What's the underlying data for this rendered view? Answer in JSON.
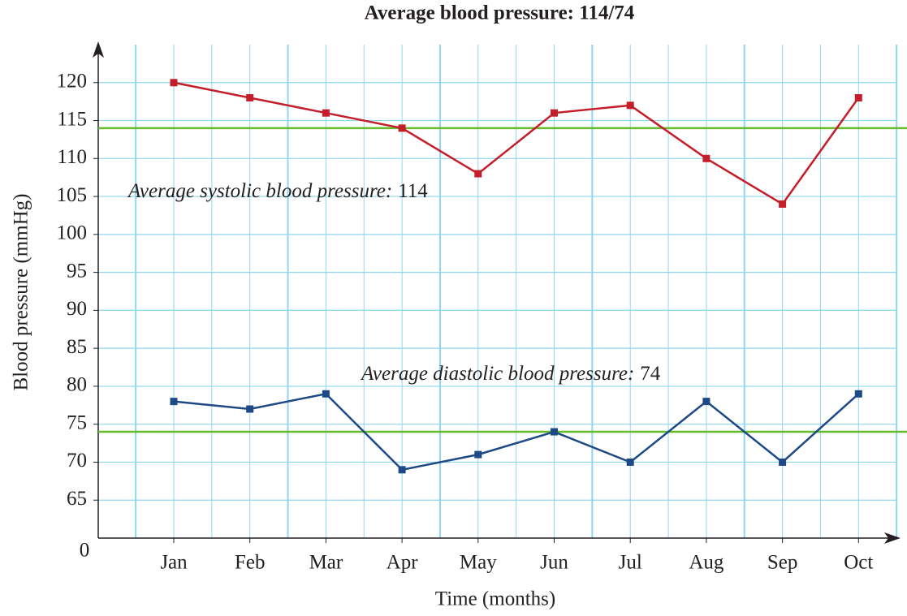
{
  "chart_data": {
    "type": "line",
    "title": "Average blood pressure: 114/74",
    "x_label": "Time (months)",
    "y_label": "Blood pressure (mmHg)",
    "origin_label": "0",
    "categories": [
      "Jan",
      "Feb",
      "Mar",
      "Apr",
      "May",
      "Jun",
      "Jul",
      "Aug",
      "Sep",
      "Oct"
    ],
    "series": [
      {
        "name": "Systolic",
        "color": "#c41e2a",
        "values": [
          120,
          118,
          116,
          114,
          108,
          116,
          117,
          110,
          104,
          118
        ]
      },
      {
        "name": "Diastolic",
        "color": "#1d4a86",
        "values": [
          78,
          77,
          79,
          69,
          71,
          74,
          70,
          78,
          70,
          79
        ]
      }
    ],
    "average_lines": [
      {
        "label": "Average systolic blood pressure:",
        "value": 114,
        "color": "#66bb2a"
      },
      {
        "label": "Average diastolic blood pressure:",
        "value": 74,
        "color": "#66bb2a"
      }
    ],
    "ylim": [
      60,
      125
    ],
    "yticks": [
      65,
      70,
      75,
      80,
      85,
      90,
      95,
      100,
      105,
      110,
      115,
      120
    ],
    "grid": true
  }
}
